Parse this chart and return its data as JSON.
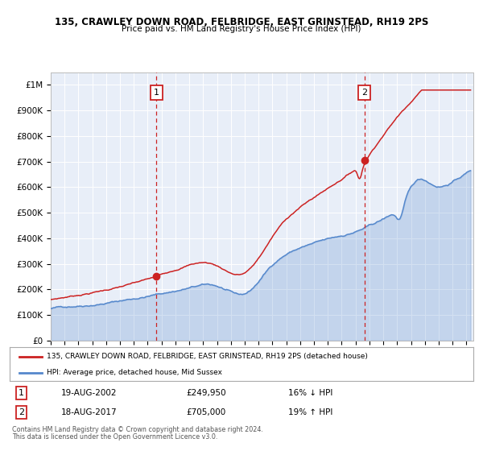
{
  "title_line1": "135, CRAWLEY DOWN ROAD, FELBRIDGE, EAST GRINSTEAD, RH19 2PS",
  "title_line2": "Price paid vs. HM Land Registry's House Price Index (HPI)",
  "ylim": [
    0,
    1050000
  ],
  "yticks": [
    0,
    100000,
    200000,
    300000,
    400000,
    500000,
    600000,
    700000,
    800000,
    900000,
    1000000
  ],
  "ytick_labels": [
    "£0",
    "£100K",
    "£200K",
    "£300K",
    "£400K",
    "£500K",
    "£600K",
    "£700K",
    "£800K",
    "£900K",
    "£1M"
  ],
  "xmin": 1995.0,
  "xmax": 2025.5,
  "hpi_color": "#5588cc",
  "price_color": "#cc2222",
  "plot_bg": "#e8eef8",
  "grid_color": "#ffffff",
  "fig_bg": "#ffffff",
  "marker1_year": 2002.635,
  "marker1_price": 249950,
  "marker1_label": "1",
  "marker1_date": "19-AUG-2002",
  "marker1_price_str": "£249,950",
  "marker1_pct": "16% ↓ HPI",
  "marker2_year": 2017.635,
  "marker2_price": 705000,
  "marker2_label": "2",
  "marker2_date": "18-AUG-2017",
  "marker2_price_str": "£705,000",
  "marker2_pct": "19% ↑ HPI",
  "legend_line1": "135, CRAWLEY DOWN ROAD, FELBRIDGE, EAST GRINSTEAD, RH19 2PS (detached house)",
  "legend_line2": "HPI: Average price, detached house, Mid Sussex",
  "footer1": "Contains HM Land Registry data © Crown copyright and database right 2024.",
  "footer2": "This data is licensed under the Open Government Licence v3.0."
}
